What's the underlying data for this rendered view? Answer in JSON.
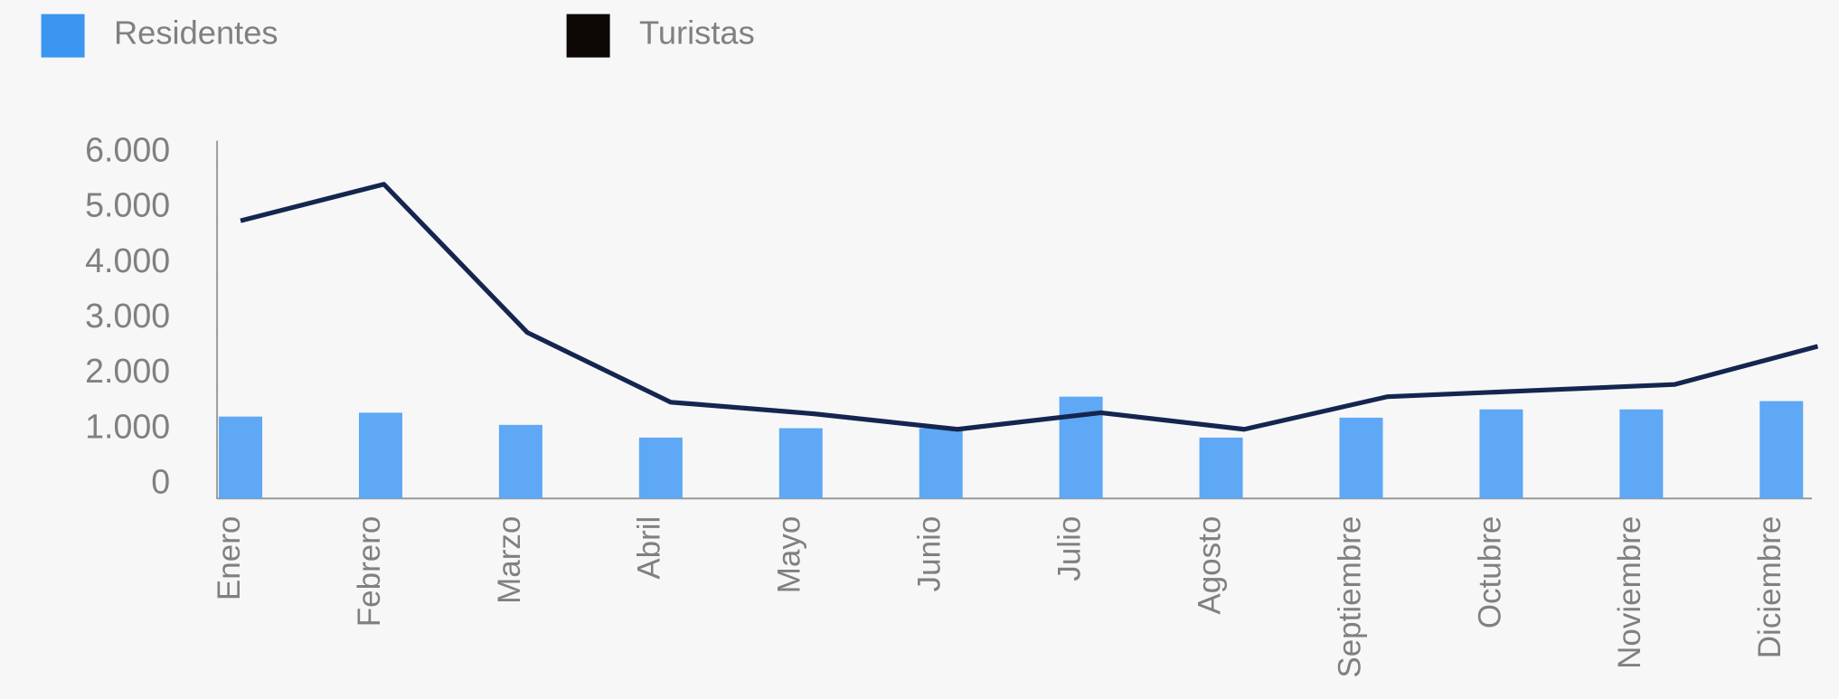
{
  "chart_data": {
    "type": "bar_line",
    "categories": [
      "Enero",
      "Febrero",
      "Marzo",
      "Abril",
      "Mayo",
      "Junio",
      "Julio",
      "Agosto",
      "Septiembre",
      "Octubre",
      "Noviembre",
      "Diciembre"
    ],
    "series": [
      {
        "name": "Residentes",
        "type": "bar",
        "color": "#5ea8f5",
        "legend_color": "#3a96f0",
        "values": [
          1480,
          1550,
          1330,
          1100,
          1270,
          1270,
          1840,
          1100,
          1460,
          1610,
          1610,
          1760
        ]
      },
      {
        "name": "Turistas",
        "type": "line",
        "color": "#14264f",
        "legend_color": "#0d0806",
        "values": [
          5020,
          5680,
          3000,
          1740,
          1530,
          1250,
          1550,
          1250,
          1840,
          1950,
          2060,
          2750
        ]
      }
    ],
    "ylim": [
      0,
      6000
    ],
    "yticks": [
      0,
      {
        "value": 1000,
        "label": "1.000"
      },
      {
        "value": 2000,
        "label": "2.000"
      },
      {
        "value": 3000,
        "label": "3.000"
      },
      {
        "value": 4000,
        "label": "4.000"
      },
      {
        "value": 5000,
        "label": "5.000"
      },
      {
        "value": 6000,
        "label": "6.000"
      }
    ],
    "legend": "top-left"
  }
}
